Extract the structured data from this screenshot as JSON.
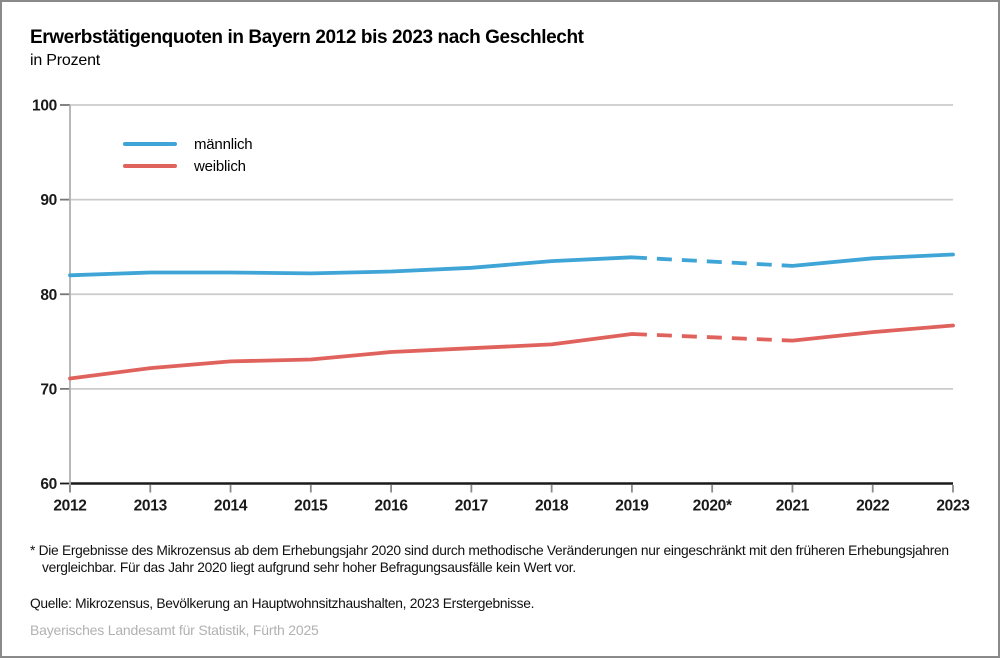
{
  "title": "Erwerbstätigenquoten in Bayern 2012 bis 2023 nach Geschlecht",
  "subtitle": "in Prozent",
  "footnote": {
    "marker": "*",
    "text": "Die Ergebnisse des Mikrozensus ab dem Erhebungsjahr 2020 sind durch methodische Veränderungen nur eingeschränkt mit den früheren Erhebungsjahren vergleichbar. Für das Jahr 2020 liegt aufgrund sehr hoher Befragungsausfälle kein Wert vor."
  },
  "source": "Quelle: Mikrozensus, Bevölkerung an Hauptwohnsitzhaushalten, 2023 Erstergebnisse.",
  "footer": "Bayerisches Landesamt für Statistik, Fürth 2025",
  "colors": {
    "maennlich": "#3fa4d6",
    "weiblich": "#e0625c",
    "gridline": "#cbcbcb",
    "axis": "#1a1a1a",
    "tick": "#8a8a8a",
    "footer_gray": "#b1b1b1"
  },
  "chart_data": {
    "type": "line",
    "categories": [
      "2012",
      "2013",
      "2014",
      "2015",
      "2016",
      "2017",
      "2018",
      "2019",
      "2020*",
      "2021",
      "2022",
      "2023"
    ],
    "series": [
      {
        "name": "männlich",
        "color": "#3fa4d6",
        "values": [
          82.0,
          82.3,
          82.3,
          82.2,
          82.4,
          82.8,
          83.5,
          83.9,
          null,
          83.0,
          83.8,
          84.2
        ]
      },
      {
        "name": "weiblich",
        "color": "#e0625c",
        "values": [
          71.1,
          72.2,
          72.9,
          73.1,
          73.9,
          74.3,
          74.7,
          75.8,
          null,
          75.1,
          76.0,
          76.7
        ]
      }
    ],
    "ylim": [
      60,
      100
    ],
    "yticks": [
      60,
      70,
      80,
      90,
      100
    ],
    "grid": "horizontal",
    "legend_position": "top-left-inside",
    "note": "No value for 2020; the 2019–2021 connector is drawn dashed for both series."
  }
}
